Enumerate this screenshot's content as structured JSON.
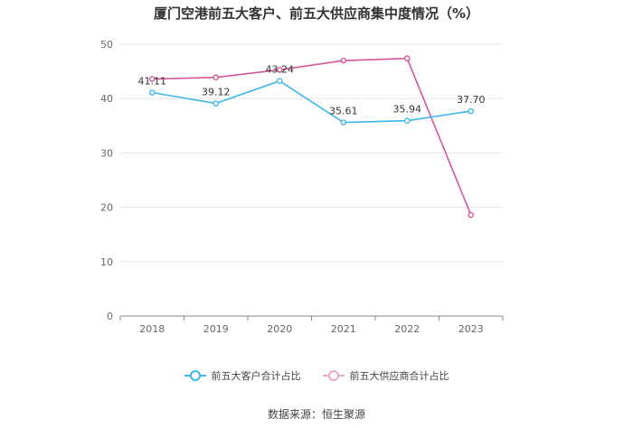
{
  "chart_data": {
    "type": "line",
    "title": "厦门空港前五大客户、前五大供应商集中度情况（%）",
    "categories": [
      "2018",
      "2019",
      "2020",
      "2021",
      "2022",
      "2023"
    ],
    "ylim": [
      0,
      50
    ],
    "yticks": [
      "0",
      "10",
      "20",
      "30",
      "40",
      "50"
    ],
    "grid": true,
    "legend_position": "bottom",
    "series": [
      {
        "name": "前五大客户合计占比",
        "color": "#41b6ec",
        "values": [
          41.11,
          39.12,
          43.24,
          35.61,
          35.94,
          37.7
        ],
        "labels": [
          "41.11",
          "39.12",
          "43.24",
          "35.61",
          "35.94",
          "37.70"
        ]
      },
      {
        "name": "前五大供应商合计占比",
        "color": "#d6559b",
        "values": [
          43.6,
          43.9,
          45.3,
          47.0,
          47.4,
          18.6
        ],
        "labels": []
      }
    ],
    "source": "数据来源：恒生聚源"
  }
}
